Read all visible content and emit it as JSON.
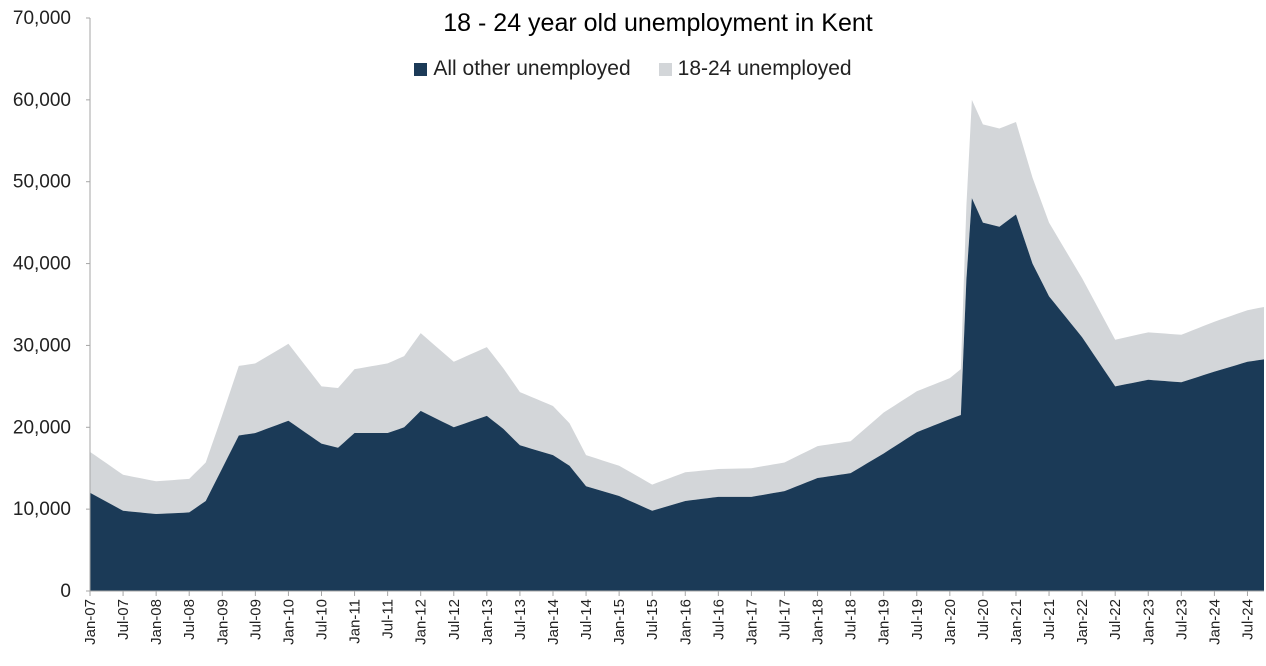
{
  "chart_data": {
    "type": "area",
    "stacked": true,
    "title": "18 - 24 year old unemployment in Kent",
    "xlabel": "",
    "ylabel": "",
    "ylim": [
      0,
      70000
    ],
    "yticks": [
      "0",
      "10,000",
      "20,000",
      "30,000",
      "40,000",
      "50,000",
      "60,000",
      "70,000"
    ],
    "x_start": "Jan-07",
    "x_end": "Oct-24",
    "x_tick_labels": [
      "Jan-07",
      "Jul-07",
      "Jan-08",
      "Jul-08",
      "Jan-09",
      "Jul-09",
      "Jan-10",
      "Jul-10",
      "Jan-11",
      "Jul-11",
      "Jan-12",
      "Jul-12",
      "Jan-13",
      "Jul-13",
      "Jan-14",
      "Jul-14",
      "Jan-15",
      "Jul-15",
      "Jan-16",
      "Jul-16",
      "Jan-17",
      "Jul-17",
      "Jan-18",
      "Jul-18",
      "Jan-19",
      "Jul-19",
      "Jan-20",
      "Jul-20",
      "Jan-21",
      "Jul-21",
      "Jan-22",
      "Jul-22",
      "Jan-23",
      "Jul-23",
      "Jan-24",
      "Jul-24"
    ],
    "legend_position": "top",
    "grid": false,
    "series": [
      {
        "name": "All other unemployed",
        "color": "#1b3a57",
        "points": [
          [
            "Jan-07",
            12000
          ],
          [
            "Jul-07",
            9800
          ],
          [
            "Jan-08",
            9400
          ],
          [
            "Jul-08",
            9600
          ],
          [
            "Oct-08",
            11000
          ],
          [
            "Jan-09",
            15000
          ],
          [
            "Apr-09",
            19000
          ],
          [
            "Jul-09",
            19300
          ],
          [
            "Jan-10",
            20800
          ],
          [
            "Jul-10",
            18000
          ],
          [
            "Oct-10",
            17500
          ],
          [
            "Jan-11",
            19300
          ],
          [
            "Jul-11",
            19300
          ],
          [
            "Oct-11",
            20000
          ],
          [
            "Jan-12",
            22000
          ],
          [
            "Jul-12",
            20000
          ],
          [
            "Jan-13",
            21400
          ],
          [
            "Apr-13",
            19800
          ],
          [
            "Jul-13",
            17800
          ],
          [
            "Jan-14",
            16600
          ],
          [
            "Apr-14",
            15300
          ],
          [
            "Jul-14",
            12800
          ],
          [
            "Jan-15",
            11600
          ],
          [
            "Jul-15",
            9800
          ],
          [
            "Jan-16",
            11000
          ],
          [
            "Jul-16",
            11500
          ],
          [
            "Jan-17",
            11500
          ],
          [
            "Jul-17",
            12200
          ],
          [
            "Jan-18",
            13800
          ],
          [
            "Jul-18",
            14400
          ],
          [
            "Jan-19",
            16800
          ],
          [
            "Jul-19",
            19400
          ],
          [
            "Jan-20",
            21000
          ],
          [
            "Mar-20",
            21500
          ],
          [
            "Apr-20",
            38000
          ],
          [
            "May-20",
            48000
          ],
          [
            "Jul-20",
            45000
          ],
          [
            "Oct-20",
            44500
          ],
          [
            "Jan-21",
            46000
          ],
          [
            "Apr-21",
            40000
          ],
          [
            "Jul-21",
            36000
          ],
          [
            "Jan-22",
            31000
          ],
          [
            "Jul-22",
            25000
          ],
          [
            "Jan-23",
            25800
          ],
          [
            "Jul-23",
            25500
          ],
          [
            "Jan-24",
            26800
          ],
          [
            "Jul-24",
            28000
          ],
          [
            "Oct-24",
            28300
          ]
        ]
      },
      {
        "name": "18-24 unemployed",
        "color": "#d3d6d9",
        "points": [
          [
            "Jan-07",
            5000
          ],
          [
            "Jul-07",
            4400
          ],
          [
            "Jan-08",
            4000
          ],
          [
            "Jul-08",
            4100
          ],
          [
            "Oct-08",
            4700
          ],
          [
            "Jan-09",
            6500
          ],
          [
            "Apr-09",
            8500
          ],
          [
            "Jul-09",
            8500
          ],
          [
            "Jan-10",
            9400
          ],
          [
            "Jul-10",
            7000
          ],
          [
            "Oct-10",
            7300
          ],
          [
            "Jan-11",
            7800
          ],
          [
            "Jul-11",
            8500
          ],
          [
            "Oct-11",
            8700
          ],
          [
            "Jan-12",
            9500
          ],
          [
            "Jul-12",
            8000
          ],
          [
            "Jan-13",
            8400
          ],
          [
            "Apr-13",
            7400
          ],
          [
            "Jul-13",
            6500
          ],
          [
            "Jan-14",
            6000
          ],
          [
            "Apr-14",
            5200
          ],
          [
            "Jul-14",
            3800
          ],
          [
            "Jan-15",
            3700
          ],
          [
            "Jul-15",
            3200
          ],
          [
            "Jan-16",
            3500
          ],
          [
            "Jul-16",
            3400
          ],
          [
            "Jan-17",
            3500
          ],
          [
            "Jul-17",
            3500
          ],
          [
            "Jan-18",
            3900
          ],
          [
            "Jul-18",
            3900
          ],
          [
            "Jan-19",
            5000
          ],
          [
            "Jul-19",
            5000
          ],
          [
            "Jan-20",
            5000
          ],
          [
            "Mar-20",
            5600
          ],
          [
            "Apr-20",
            9000
          ],
          [
            "May-20",
            12000
          ],
          [
            "Jul-20",
            12000
          ],
          [
            "Oct-20",
            12000
          ],
          [
            "Jan-21",
            11300
          ],
          [
            "Apr-21",
            10500
          ],
          [
            "Jul-21",
            9000
          ],
          [
            "Jan-22",
            7200
          ],
          [
            "Jul-22",
            5700
          ],
          [
            "Jan-23",
            5800
          ],
          [
            "Jul-23",
            5800
          ],
          [
            "Jan-24",
            6100
          ],
          [
            "Jul-24",
            6300
          ],
          [
            "Oct-24",
            6400
          ]
        ]
      }
    ]
  }
}
